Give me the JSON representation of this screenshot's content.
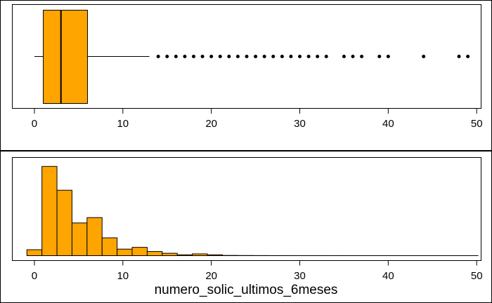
{
  "chart_data": [
    {
      "type": "boxplot",
      "orientation": "horizontal",
      "xlim": [
        -2.5,
        50.5
      ],
      "x_ticks": [
        0,
        10,
        20,
        30,
        40,
        50
      ],
      "x_tick_labels": [
        "0",
        "10",
        "20",
        "30",
        "40",
        "50"
      ],
      "stats": {
        "whisker_low": 0,
        "q1": 1,
        "median": 3,
        "q3": 6,
        "whisker_high": 13
      },
      "outliers": [
        14,
        15,
        16,
        17,
        18,
        19,
        20,
        21,
        22,
        23,
        24,
        25,
        26,
        27,
        28,
        29,
        30,
        31,
        32,
        33,
        35,
        36,
        37,
        39,
        40,
        44,
        48,
        49
      ],
      "color": "#FFA500"
    },
    {
      "type": "histogram",
      "xlim": [
        -2.5,
        50.5
      ],
      "x_ticks": [
        0,
        10,
        20,
        30,
        40,
        50
      ],
      "x_tick_labels": [
        "0",
        "10",
        "20",
        "30",
        "40",
        "50"
      ],
      "xlabel": "numero_solic_ultimos_6meses",
      "bin_width": 1.7,
      "bins": [
        -0.85,
        0.85,
        2.55,
        4.25,
        5.95,
        7.65,
        9.35,
        11.05,
        12.75,
        14.45,
        16.15,
        17.85,
        19.55,
        21.25,
        22.95,
        24.65,
        26.35,
        28.05,
        29.75,
        31.45,
        33.15,
        34.85,
        36.55,
        38.25,
        39.95,
        41.65,
        43.35,
        45.05,
        46.75,
        48.45,
        50.15
      ],
      "counts": [
        1000,
        15000,
        11000,
        5500,
        6400,
        3000,
        1100,
        1400,
        700,
        400,
        150,
        300,
        150,
        40,
        25,
        15,
        10,
        8,
        6,
        5,
        4,
        4,
        3,
        2,
        2,
        1,
        1,
        1,
        1,
        1
      ],
      "ylim": [
        0,
        15800
      ],
      "color": "#FFA500"
    }
  ]
}
